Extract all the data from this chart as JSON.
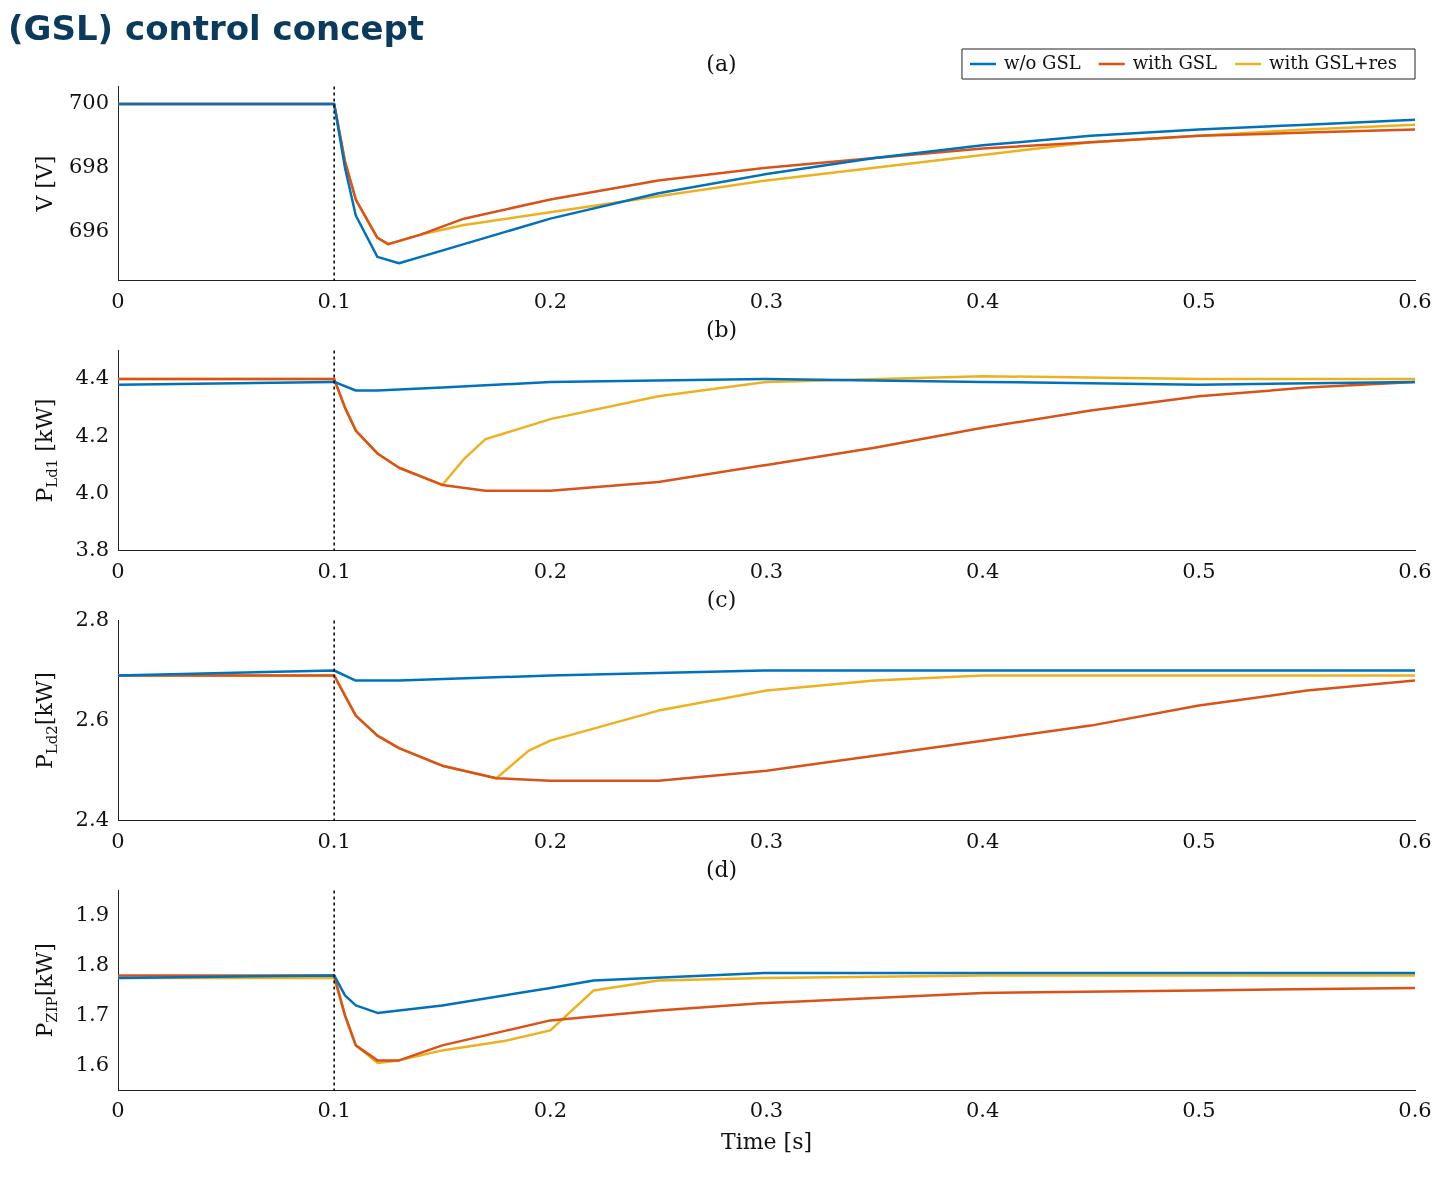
{
  "chart_data": [
    {
      "type": "line",
      "title": "(a)",
      "ylabel": "V [V]",
      "annotations": [
        "(GSL) control concept"
      ],
      "xlim": [
        0,
        0.6
      ],
      "xticks": [
        0,
        0.1,
        0.2,
        0.3,
        0.4,
        0.5,
        0.6
      ],
      "ylim": [
        694.45,
        700.55
      ],
      "yticks": [
        696,
        698,
        700
      ],
      "legend": "top right",
      "ref_lines": [
        {
          "axis": "x",
          "value": 0.1,
          "color": "#000000",
          "line_style": "dotted"
        }
      ],
      "series": [
        {
          "name": "w/o GSL",
          "color": "#0072bd",
          "x": [
            0,
            0.1,
            0.105,
            0.11,
            0.12,
            0.13,
            0.14,
            0.16,
            0.18,
            0.2,
            0.25,
            0.3,
            0.35,
            0.4,
            0.45,
            0.5,
            0.55,
            0.6
          ],
          "values": [
            700,
            700,
            698,
            696.5,
            695.2,
            695.0,
            695.2,
            695.6,
            696.0,
            696.4,
            697.2,
            697.8,
            698.3,
            698.7,
            699.0,
            699.2,
            699.35,
            699.5
          ]
        },
        {
          "name": "with GSL",
          "color": "#d95319",
          "x": [
            0,
            0.1,
            0.105,
            0.11,
            0.12,
            0.125,
            0.14,
            0.16,
            0.2,
            0.25,
            0.3,
            0.35,
            0.4,
            0.45,
            0.5,
            0.55,
            0.6
          ],
          "values": [
            700,
            700,
            698.2,
            697,
            695.8,
            695.6,
            695.9,
            696.4,
            697.0,
            697.6,
            698.0,
            698.3,
            698.6,
            698.8,
            699.0,
            699.1,
            699.2
          ]
        },
        {
          "name": "with GSL+res",
          "color": "#edb120",
          "x": [
            0,
            0.1,
            0.105,
            0.11,
            0.12,
            0.125,
            0.14,
            0.16,
            0.2,
            0.25,
            0.3,
            0.35,
            0.4,
            0.45,
            0.5,
            0.55,
            0.6
          ],
          "values": [
            700,
            700,
            698.2,
            697,
            695.8,
            695.6,
            695.9,
            696.2,
            696.6,
            697.1,
            697.6,
            698.0,
            698.4,
            698.8,
            699.0,
            699.2,
            699.35
          ]
        }
      ]
    },
    {
      "type": "line",
      "title": "(b)",
      "ylabel": "P$_{Ld1}$ [kW]",
      "xlim": [
        0,
        0.6
      ],
      "xticks": [
        0,
        0.1,
        0.2,
        0.3,
        0.4,
        0.5,
        0.6
      ],
      "ylim": [
        3.8,
        4.5
      ],
      "yticks": [
        3.8,
        {
          "value": 4,
          "label": "4.0"
        },
        4.2,
        4.4
      ],
      "ref_lines": [
        {
          "axis": "x",
          "value": 0.1,
          "color": "#000000",
          "line_style": "dotted"
        }
      ],
      "series": [
        {
          "color": "#0072bd",
          "x": [
            0,
            0.1,
            0.11,
            0.12,
            0.15,
            0.2,
            0.3,
            0.4,
            0.5,
            0.6
          ],
          "values": [
            4.38,
            4.39,
            4.36,
            4.36,
            4.37,
            4.39,
            4.4,
            4.39,
            4.38,
            4.39
          ]
        },
        {
          "color": "#d95319",
          "x": [
            0,
            0.1,
            0.105,
            0.11,
            0.12,
            0.13,
            0.15,
            0.17,
            0.2,
            0.25,
            0.3,
            0.35,
            0.4,
            0.45,
            0.5,
            0.55,
            0.6
          ],
          "values": [
            4.4,
            4.4,
            4.3,
            4.22,
            4.14,
            4.09,
            4.03,
            4.01,
            4.01,
            4.04,
            4.1,
            4.16,
            4.23,
            4.29,
            4.34,
            4.37,
            4.39
          ]
        },
        {
          "color": "#edb120",
          "x": [
            0,
            0.1,
            0.105,
            0.11,
            0.12,
            0.13,
            0.15,
            0.16,
            0.17,
            0.2,
            0.25,
            0.3,
            0.4,
            0.5,
            0.6
          ],
          "values": [
            4.4,
            4.4,
            4.3,
            4.22,
            4.14,
            4.09,
            4.03,
            4.12,
            4.19,
            4.26,
            4.34,
            4.39,
            4.41,
            4.4,
            4.4
          ]
        }
      ]
    },
    {
      "type": "line",
      "title": "(c)",
      "ylabel": "P$_{Ld2}$[kW]",
      "xlim": [
        0,
        0.6
      ],
      "xticks": [
        0,
        0.1,
        0.2,
        0.3,
        0.4,
        0.5,
        0.6
      ],
      "ylim": [
        2.4,
        2.8
      ],
      "yticks": [
        2.4,
        2.6,
        2.8
      ],
      "ref_lines": [
        {
          "axis": "x",
          "value": 0.1,
          "color": "#000000",
          "line_style": "dotted"
        }
      ],
      "series": [
        {
          "color": "#0072bd",
          "x": [
            0,
            0.1,
            0.11,
            0.13,
            0.2,
            0.3,
            0.6
          ],
          "values": [
            2.69,
            2.7,
            2.68,
            2.68,
            2.69,
            2.7,
            2.7
          ]
        },
        {
          "color": "#d95319",
          "x": [
            0,
            0.1,
            0.105,
            0.11,
            0.12,
            0.13,
            0.15,
            0.175,
            0.2,
            0.25,
            0.3,
            0.35,
            0.4,
            0.45,
            0.5,
            0.55,
            0.6
          ],
          "values": [
            2.69,
            2.69,
            2.65,
            2.61,
            2.57,
            2.545,
            2.51,
            2.485,
            2.48,
            2.48,
            2.5,
            2.53,
            2.56,
            2.59,
            2.63,
            2.66,
            2.68
          ]
        },
        {
          "color": "#edb120",
          "x": [
            0,
            0.1,
            0.105,
            0.11,
            0.12,
            0.13,
            0.15,
            0.175,
            0.19,
            0.2,
            0.25,
            0.3,
            0.35,
            0.4,
            0.6
          ],
          "values": [
            2.69,
            2.69,
            2.65,
            2.61,
            2.57,
            2.545,
            2.51,
            2.485,
            2.54,
            2.56,
            2.62,
            2.66,
            2.68,
            2.69,
            2.69
          ]
        }
      ]
    },
    {
      "type": "line",
      "title": "(d)",
      "xlabel": "Time [s]",
      "ylabel": "P$_{ZIP}$[kW]",
      "xlim": [
        0,
        0.6
      ],
      "xticks": [
        0,
        0.1,
        0.2,
        0.3,
        0.4,
        0.5,
        0.6
      ],
      "ylim": [
        1.55,
        1.95
      ],
      "yticks": [
        1.6,
        1.7,
        1.8,
        1.9
      ],
      "ref_lines": [
        {
          "axis": "x",
          "value": 0.1,
          "color": "#000000",
          "line_style": "dotted"
        }
      ],
      "series": [
        {
          "color": "#0072bd",
          "x": [
            0,
            0.1,
            0.105,
            0.11,
            0.12,
            0.15,
            0.2,
            0.22,
            0.3,
            0.4,
            0.6
          ],
          "values": [
            1.775,
            1.78,
            1.74,
            1.72,
            1.705,
            1.72,
            1.755,
            1.77,
            1.785,
            1.785,
            1.785
          ]
        },
        {
          "color": "#d95319",
          "x": [
            0,
            0.1,
            0.105,
            0.11,
            0.12,
            0.13,
            0.15,
            0.18,
            0.2,
            0.25,
            0.3,
            0.4,
            0.5,
            0.6
          ],
          "values": [
            1.78,
            1.78,
            1.7,
            1.64,
            1.61,
            1.61,
            1.64,
            1.67,
            1.69,
            1.71,
            1.725,
            1.745,
            1.75,
            1.755
          ]
        },
        {
          "color": "#edb120",
          "x": [
            0,
            0.1,
            0.105,
            0.11,
            0.12,
            0.13,
            0.15,
            0.18,
            0.2,
            0.22,
            0.25,
            0.3,
            0.4,
            0.6
          ],
          "values": [
            1.775,
            1.775,
            1.7,
            1.64,
            1.605,
            1.61,
            1.63,
            1.65,
            1.67,
            1.75,
            1.77,
            1.775,
            1.78,
            1.78
          ]
        }
      ]
    }
  ]
}
